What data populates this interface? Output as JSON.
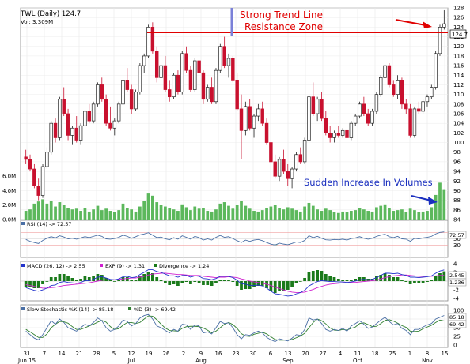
{
  "header": {
    "ticker_line": "TWL (Daily) 124.7",
    "volume_line": "Vol: 3.309M"
  },
  "annotations": {
    "trend_line_1": "Strong Trend Line",
    "trend_line_2": "Resistance Zone",
    "volume_note": "Sudden Increase In Volumes"
  },
  "price_tag": "124.7",
  "panels": {
    "rsi": {
      "legend": "RSI (14) -> 72.57",
      "last_label": "72.57"
    },
    "macd": {
      "legend_macd": "MACD (26, 12) -> 2.55",
      "legend_exp": "EXP (9) -> 1.31",
      "legend_div": "Divergence -> 1.24",
      "last_macd": "2.545",
      "last_div": "1.236"
    },
    "stoch": {
      "legend_k": "Slow Stochastic %K (14) -> 85.18",
      "legend_d": "%D (3) -> 69.42",
      "last_k": "85.18",
      "last_d": "69.42"
    }
  },
  "colors": {
    "up": "#222222",
    "down": "#c8102e",
    "volume": "#5cb85c",
    "resistance": "#e00000",
    "annotation_red": "#e00000",
    "annotation_blue": "#1a2fbf",
    "rsi_line": "#4a6fa5",
    "macd_line": "#2233cc",
    "signal_line": "#d020d0",
    "histogram": "#1a7a1a",
    "stoch_k": "#4a6fa5",
    "stoch_d": "#2f7f2f"
  },
  "chart_data": {
    "type": "candlestick",
    "price_axis": {
      "min": 84,
      "max": 128,
      "ticks": [
        "84",
        "86",
        "88",
        "90",
        "92",
        "94",
        "96",
        "98",
        "100",
        "102",
        "104",
        "106",
        "108",
        "110",
        "112",
        "114",
        "116",
        "118",
        "120",
        "122",
        "124",
        "126",
        "128"
      ]
    },
    "volume_axis": {
      "ticks": [
        "0.0M",
        "2.0M",
        "4.0M",
        "6.0M"
      ],
      "max": 7.0
    },
    "x_axis": {
      "day_labels": [
        "31",
        "7",
        "14",
        "21",
        "28",
        "5",
        "12",
        "19",
        "26",
        "2",
        "9",
        "16",
        "23",
        "30",
        "6",
        "13",
        "20",
        "27",
        "4",
        "11",
        "18",
        "25",
        "1",
        "8",
        "15"
      ],
      "month_labels": [
        "Jun 15",
        "Jul",
        "Aug",
        "Sep",
        "Oct",
        "Nov"
      ]
    },
    "resistance_level": 124.7,
    "candles": [
      [
        97.0,
        98.5,
        95.5,
        96.5,
        1.2
      ],
      [
        96.5,
        97.5,
        94.0,
        94.5,
        1.4
      ],
      [
        94.5,
        95.5,
        90.5,
        91.0,
        2.2
      ],
      [
        91.0,
        92.5,
        88.0,
        89.0,
        2.5
      ],
      [
        89.0,
        95.5,
        88.5,
        95.0,
        2.8
      ],
      [
        95.0,
        99.0,
        94.5,
        98.0,
        2.2
      ],
      [
        98.0,
        104.5,
        97.5,
        104.0,
        2.6
      ],
      [
        104.0,
        105.0,
        100.0,
        101.0,
        1.8
      ],
      [
        101.0,
        109.5,
        100.5,
        109.0,
        2.4
      ],
      [
        109.0,
        111.5,
        105.5,
        106.0,
        2.0
      ],
      [
        106.0,
        107.0,
        100.5,
        101.5,
        1.6
      ],
      [
        101.5,
        103.5,
        99.5,
        103.0,
        1.4
      ],
      [
        103.0,
        105.5,
        100.0,
        100.5,
        1.5
      ],
      [
        100.5,
        104.0,
        99.5,
        103.5,
        1.2
      ],
      [
        103.5,
        107.0,
        103.0,
        106.5,
        1.6
      ],
      [
        106.5,
        108.0,
        104.0,
        104.5,
        1.1
      ],
      [
        104.5,
        108.5,
        104.0,
        108.0,
        1.4
      ],
      [
        108.0,
        112.5,
        107.5,
        112.0,
        1.9
      ],
      [
        112.0,
        113.5,
        108.5,
        109.0,
        1.3
      ],
      [
        109.0,
        110.0,
        103.5,
        104.0,
        1.5
      ],
      [
        104.0,
        107.5,
        102.5,
        103.0,
        1.2
      ],
      [
        103.0,
        105.0,
        101.5,
        104.5,
        1.0
      ],
      [
        104.5,
        108.5,
        104.0,
        108.0,
        1.3
      ],
      [
        108.0,
        113.5,
        107.5,
        113.0,
        2.2
      ],
      [
        113.0,
        115.5,
        110.5,
        111.0,
        1.6
      ],
      [
        111.0,
        112.0,
        106.0,
        107.0,
        1.4
      ],
      [
        107.0,
        111.0,
        106.5,
        110.5,
        1.1
      ],
      [
        110.5,
        116.5,
        110.0,
        116.0,
        1.8
      ],
      [
        116.0,
        118.5,
        114.5,
        118.0,
        2.6
      ],
      [
        118.0,
        124.5,
        117.5,
        124.0,
        3.6
      ],
      [
        124.0,
        125.0,
        118.5,
        119.0,
        3.3
      ],
      [
        119.0,
        120.0,
        112.5,
        113.5,
        2.4
      ],
      [
        113.5,
        116.5,
        112.0,
        116.0,
        2.0
      ],
      [
        116.0,
        118.0,
        110.5,
        111.0,
        1.8
      ],
      [
        111.0,
        113.0,
        108.5,
        109.5,
        1.6
      ],
      [
        109.5,
        114.5,
        109.0,
        114.0,
        1.4
      ],
      [
        114.0,
        115.0,
        110.0,
        110.5,
        1.2
      ],
      [
        110.5,
        119.0,
        110.0,
        118.5,
        2.1
      ],
      [
        118.5,
        120.0,
        114.5,
        115.0,
        1.7
      ],
      [
        115.0,
        116.0,
        110.5,
        111.0,
        1.3
      ],
      [
        111.0,
        117.5,
        110.5,
        117.0,
        1.8
      ],
      [
        117.0,
        118.5,
        114.0,
        114.5,
        1.5
      ],
      [
        114.5,
        115.0,
        108.0,
        109.0,
        1.6
      ],
      [
        109.0,
        112.0,
        108.5,
        111.5,
        1.2
      ],
      [
        111.5,
        113.5,
        108.0,
        108.5,
        1.1
      ],
      [
        108.5,
        115.5,
        108.0,
        115.0,
        1.4
      ],
      [
        115.0,
        120.5,
        114.5,
        120.0,
        2.2
      ],
      [
        120.0,
        122.0,
        115.5,
        116.0,
        2.4
      ],
      [
        116.0,
        118.5,
        113.5,
        117.5,
        1.9
      ],
      [
        117.5,
        118.0,
        112.5,
        113.0,
        1.5
      ],
      [
        113.0,
        114.5,
        106.5,
        107.0,
        2.0
      ],
      [
        107.0,
        110.0,
        96.5,
        102.5,
        2.6
      ],
      [
        102.5,
        108.5,
        101.5,
        107.5,
        1.9
      ],
      [
        107.5,
        109.0,
        102.5,
        103.0,
        1.5
      ],
      [
        103.0,
        106.0,
        101.0,
        105.5,
        1.2
      ],
      [
        105.5,
        108.0,
        104.5,
        107.0,
        1.1
      ],
      [
        107.0,
        108.5,
        103.5,
        104.0,
        1.3
      ],
      [
        104.0,
        105.0,
        99.5,
        100.0,
        1.6
      ],
      [
        100.0,
        100.5,
        95.5,
        96.0,
        1.8
      ],
      [
        96.0,
        97.5,
        92.5,
        93.0,
        2.0
      ],
      [
        93.0,
        97.0,
        92.0,
        96.5,
        1.6
      ],
      [
        96.5,
        98.5,
        93.5,
        94.0,
        1.4
      ],
      [
        94.0,
        95.5,
        91.0,
        92.5,
        1.7
      ],
      [
        92.5,
        95.0,
        90.5,
        94.5,
        1.5
      ],
      [
        94.5,
        98.0,
        94.0,
        97.5,
        1.3
      ],
      [
        97.5,
        99.0,
        95.5,
        96.0,
        1.1
      ],
      [
        96.0,
        101.0,
        95.5,
        100.5,
        1.8
      ],
      [
        100.5,
        110.0,
        100.0,
        109.5,
        2.3
      ],
      [
        109.5,
        112.5,
        105.5,
        106.0,
        1.9
      ],
      [
        106.0,
        109.5,
        104.5,
        109.0,
        1.4
      ],
      [
        109.0,
        110.5,
        104.5,
        105.0,
        1.2
      ],
      [
        105.0,
        106.5,
        101.5,
        102.0,
        1.5
      ],
      [
        102.0,
        103.5,
        100.0,
        101.0,
        1.3
      ],
      [
        101.0,
        102.5,
        100.0,
        102.0,
        1.0
      ],
      [
        102.0,
        103.5,
        101.0,
        101.5,
        0.9
      ],
      [
        101.5,
        103.0,
        101.0,
        102.5,
        1.1
      ],
      [
        102.5,
        103.0,
        100.5,
        101.0,
        1.0
      ],
      [
        101.0,
        104.5,
        100.5,
        104.0,
        1.2
      ],
      [
        104.0,
        106.0,
        103.5,
        105.5,
        1.3
      ],
      [
        105.5,
        108.5,
        105.0,
        108.0,
        1.6
      ],
      [
        108.0,
        109.5,
        105.5,
        106.0,
        1.4
      ],
      [
        106.0,
        107.0,
        103.5,
        104.0,
        1.2
      ],
      [
        104.0,
        107.0,
        103.5,
        106.5,
        1.1
      ],
      [
        106.5,
        110.5,
        106.0,
        110.0,
        1.7
      ],
      [
        110.0,
        114.0,
        109.5,
        113.5,
        1.9
      ],
      [
        113.5,
        116.5,
        113.0,
        116.0,
        2.1
      ],
      [
        116.0,
        116.5,
        111.5,
        112.0,
        1.6
      ],
      [
        112.0,
        113.0,
        109.5,
        110.0,
        1.2
      ],
      [
        110.0,
        114.0,
        109.0,
        113.0,
        1.3
      ],
      [
        113.0,
        113.5,
        107.0,
        108.0,
        1.4
      ],
      [
        108.0,
        109.0,
        106.0,
        107.0,
        1.0
      ],
      [
        107.0,
        108.0,
        101.0,
        101.5,
        1.5
      ],
      [
        101.5,
        107.5,
        101.0,
        107.0,
        1.3
      ],
      [
        107.0,
        108.5,
        106.0,
        106.5,
        1.0
      ],
      [
        106.5,
        109.0,
        106.0,
        108.5,
        1.1
      ],
      [
        108.5,
        110.0,
        107.5,
        109.5,
        1.2
      ],
      [
        109.5,
        112.0,
        109.0,
        111.5,
        1.7
      ],
      [
        111.5,
        119.0,
        111.0,
        118.5,
        3.4
      ],
      [
        118.5,
        124.5,
        118.0,
        124.0,
        5.1
      ],
      [
        124.0,
        127.5,
        123.5,
        124.7,
        4.2
      ]
    ],
    "rsi": {
      "title": "RSI (14)",
      "ticks": [
        "30",
        "50",
        "70"
      ],
      "values": [
        48,
        42,
        38,
        35,
        45,
        52,
        57,
        53,
        60,
        56,
        50,
        52,
        49,
        53,
        57,
        54,
        58,
        62,
        58,
        50,
        49,
        51,
        55,
        62,
        58,
        52,
        57,
        63,
        66,
        70,
        62,
        54,
        56,
        50,
        47,
        54,
        49,
        60,
        55,
        49,
        58,
        54,
        46,
        50,
        46,
        55,
        61,
        55,
        57,
        51,
        44,
        38,
        46,
        42,
        46,
        48,
        44,
        38,
        33,
        30,
        36,
        33,
        31,
        35,
        40,
        38,
        45,
        60,
        54,
        58,
        52,
        47,
        46,
        48,
        47,
        49,
        46,
        51,
        53,
        57,
        52,
        49,
        52,
        58,
        62,
        65,
        57,
        54,
        58,
        50,
        49,
        42,
        52,
        50,
        53,
        55,
        58,
        66,
        71,
        72.57
      ]
    },
    "macd": {
      "title": "MACD (26, 12)",
      "ticks": [
        "-4",
        "-2",
        "0",
        "2",
        "4"
      ],
      "macd": [
        -1.5,
        -1.8,
        -2.1,
        -2.3,
        -2.0,
        -1.6,
        -1.0,
        -0.9,
        -0.3,
        -0.1,
        -0.3,
        -0.4,
        -0.5,
        -0.3,
        0.1,
        0.1,
        0.4,
        0.9,
        1.0,
        0.7,
        0.4,
        0.3,
        0.5,
        1.0,
        1.1,
        0.8,
        0.9,
        1.5,
        2.0,
        2.6,
        2.6,
        2.2,
        2.0,
        1.6,
        1.2,
        1.2,
        0.9,
        1.3,
        1.3,
        0.9,
        1.2,
        1.1,
        0.6,
        0.5,
        0.3,
        0.6,
        1.1,
        1.1,
        1.1,
        0.8,
        0.2,
        -0.6,
        -0.7,
        -1.0,
        -1.0,
        -0.9,
        -1.1,
        -1.6,
        -2.3,
        -2.9,
        -3.0,
        -3.2,
        -3.4,
        -3.3,
        -2.9,
        -2.6,
        -2.1,
        -1.1,
        -0.6,
        -0.1,
        0.1,
        0.0,
        -0.1,
        -0.1,
        -0.2,
        -0.2,
        -0.3,
        -0.2,
        0.0,
        0.3,
        0.4,
        0.3,
        0.4,
        0.8,
        1.3,
        1.8,
        1.8,
        1.7,
        1.8,
        1.5,
        1.3,
        0.9,
        0.9,
        0.8,
        0.9,
        1.0,
        1.2,
        1.8,
        2.3,
        2.55
      ],
      "signal": [
        -0.8,
        -1.0,
        -1.2,
        -1.4,
        -1.6,
        -1.6,
        -1.5,
        -1.4,
        -1.2,
        -1.0,
        -0.9,
        -0.8,
        -0.7,
        -0.6,
        -0.5,
        -0.4,
        -0.2,
        0.0,
        0.2,
        0.3,
        0.3,
        0.3,
        0.4,
        0.5,
        0.6,
        0.7,
        0.7,
        0.9,
        1.1,
        1.4,
        1.6,
        1.7,
        1.8,
        1.8,
        1.7,
        1.6,
        1.5,
        1.5,
        1.4,
        1.3,
        1.3,
        1.3,
        1.1,
        1.0,
        0.9,
        0.8,
        0.9,
        0.9,
        1.0,
        0.9,
        0.8,
        0.5,
        0.3,
        0.0,
        -0.2,
        -0.3,
        -0.5,
        -0.7,
        -1.0,
        -1.4,
        -1.7,
        -2.0,
        -2.3,
        -2.5,
        -2.6,
        -2.6,
        -2.5,
        -2.2,
        -1.9,
        -1.5,
        -1.2,
        -0.9,
        -0.7,
        -0.6,
        -0.5,
        -0.4,
        -0.4,
        -0.3,
        -0.3,
        -0.2,
        -0.1,
        0.0,
        0.1,
        0.2,
        0.5,
        0.8,
        1.0,
        1.2,
        1.3,
        1.4,
        1.4,
        1.3,
        1.2,
        1.1,
        1.1,
        1.1,
        1.1,
        1.2,
        1.3,
        1.31
      ]
    },
    "stochastic": {
      "title": "Slow Stochastic %K (14)",
      "ticks": [
        "0",
        "25",
        "50",
        "75",
        "100"
      ],
      "k": [
        40,
        30,
        20,
        15,
        30,
        50,
        70,
        60,
        75,
        65,
        50,
        45,
        40,
        50,
        60,
        55,
        65,
        78,
        70,
        50,
        40,
        45,
        55,
        72,
        68,
        55,
        62,
        78,
        85,
        88,
        75,
        55,
        50,
        42,
        35,
        45,
        40,
        60,
        58,
        45,
        58,
        55,
        35,
        38,
        32,
        50,
        68,
        62,
        64,
        50,
        30,
        18,
        30,
        28,
        35,
        40,
        35,
        22,
        15,
        10,
        18,
        15,
        12,
        20,
        30,
        28,
        45,
        78,
        72,
        75,
        62,
        45,
        40,
        45,
        42,
        48,
        40,
        55,
        62,
        70,
        60,
        48,
        52,
        62,
        72,
        80,
        68,
        58,
        62,
        48,
        42,
        30,
        45,
        45,
        52,
        58,
        62,
        75,
        80,
        85.18
      ],
      "d": [
        45,
        38,
        30,
        22,
        22,
        32,
        50,
        60,
        68,
        67,
        63,
        53,
        45,
        45,
        50,
        55,
        60,
        66,
        71,
        66,
        53,
        45,
        47,
        57,
        65,
        65,
        62,
        65,
        75,
        84,
        83,
        73,
        60,
        49,
        42,
        41,
        40,
        48,
        53,
        54,
        54,
        53,
        49,
        43,
        35,
        40,
        50,
        60,
        65,
        59,
        48,
        33,
        26,
        25,
        31,
        34,
        37,
        32,
        24,
        16,
        14,
        14,
        15,
        16,
        21,
        26,
        34,
        50,
        65,
        75,
        70,
        61,
        49,
        43,
        42,
        45,
        43,
        48,
        52,
        62,
        64,
        59,
        53,
        54,
        62,
        71,
        73,
        69,
        63,
        56,
        51,
        40,
        39,
        40,
        47,
        52,
        57,
        65,
        72,
        69.42
      ]
    }
  }
}
